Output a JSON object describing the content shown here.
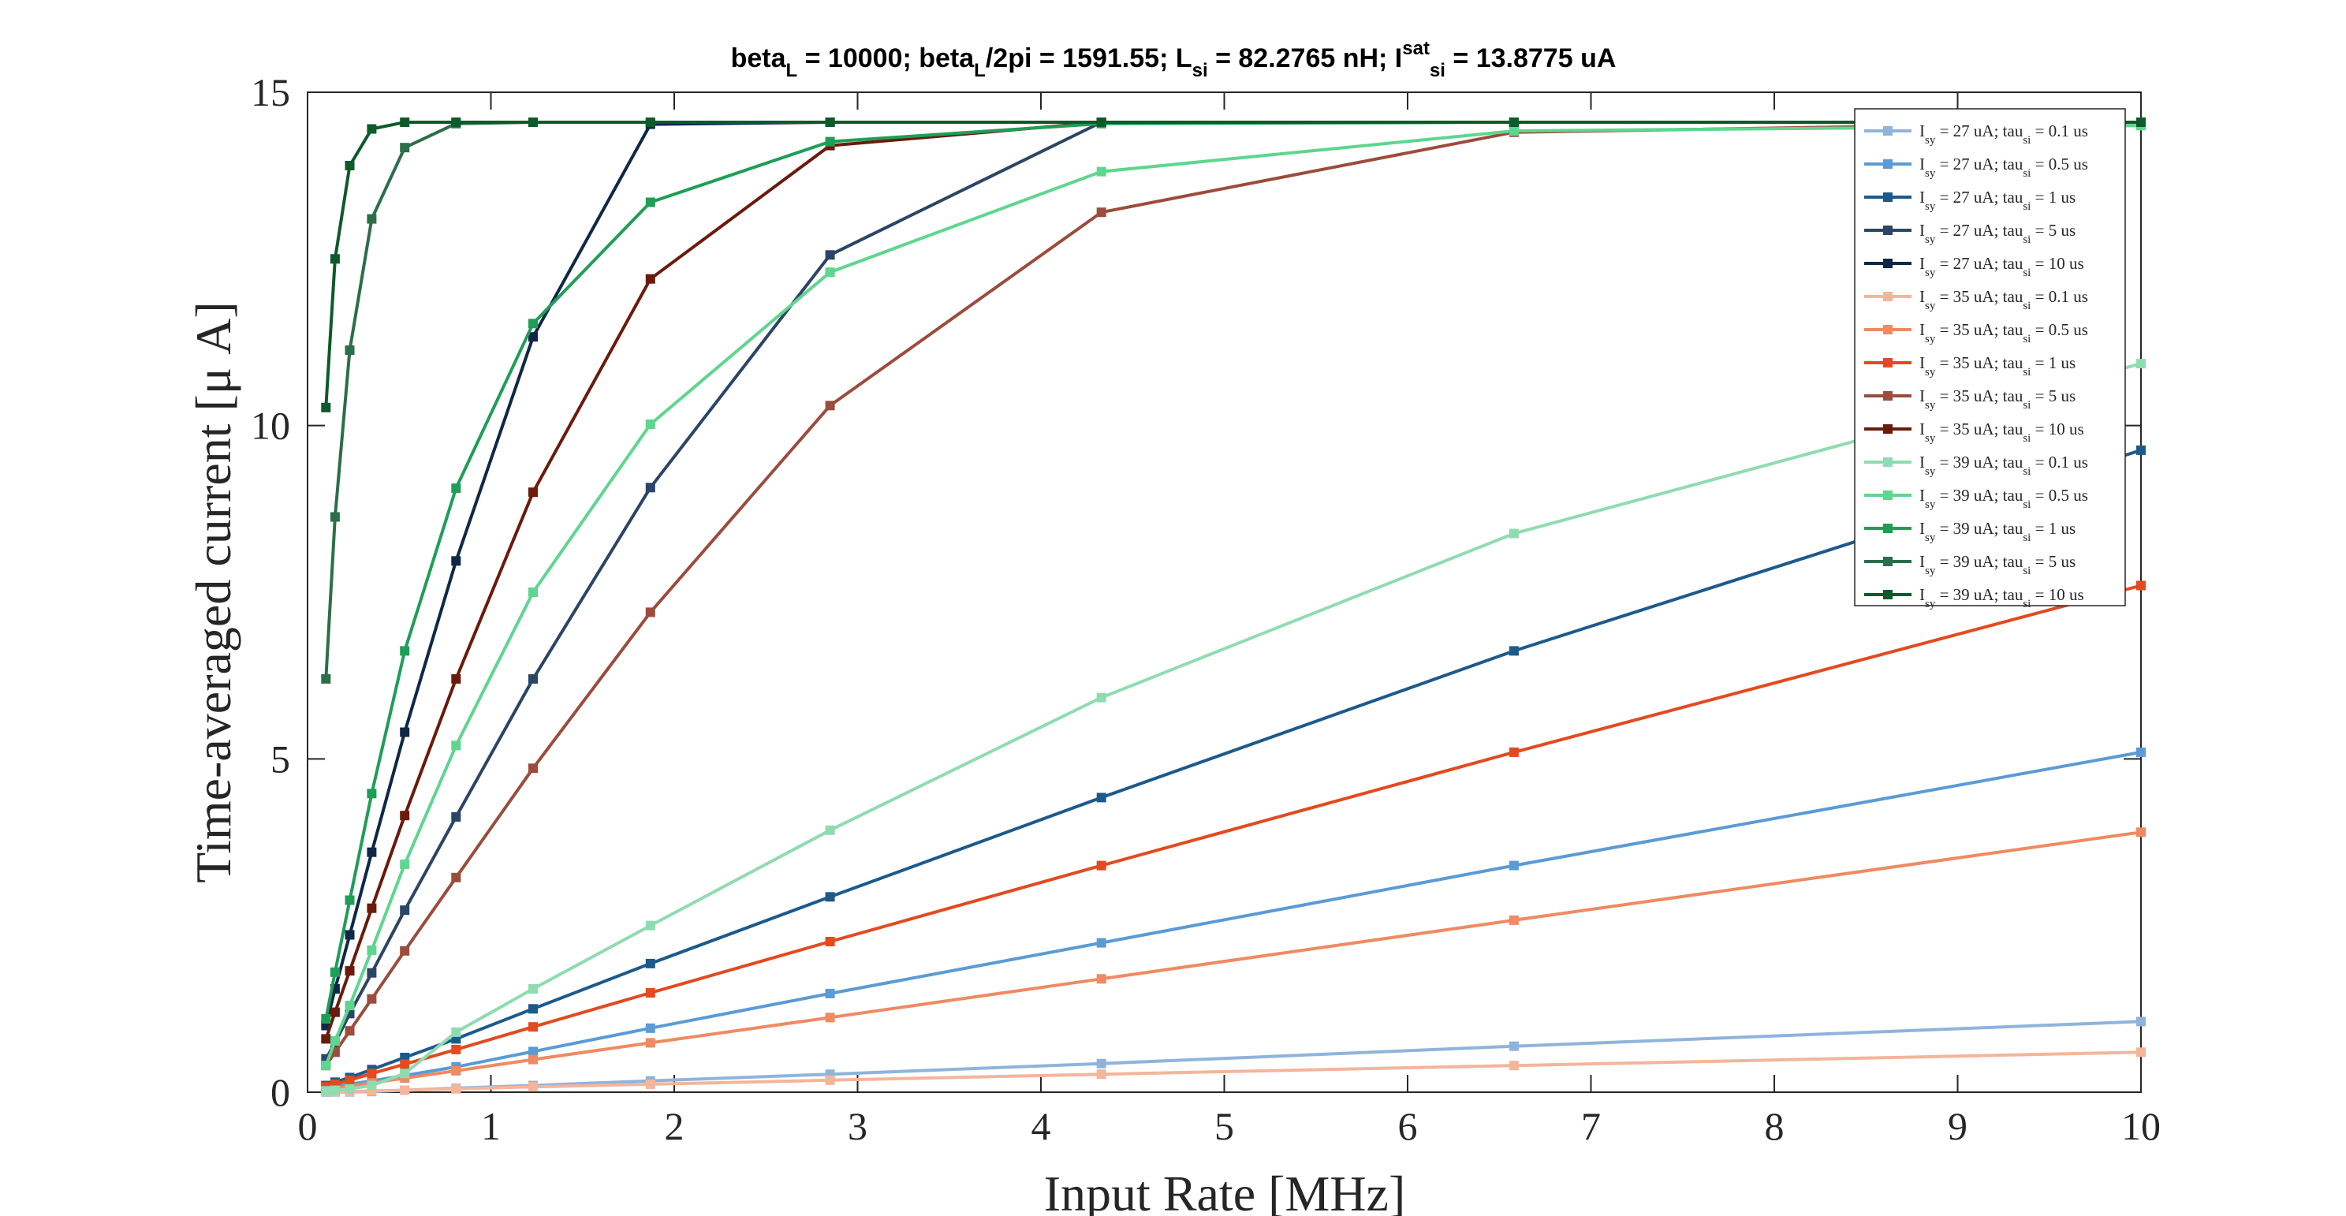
{
  "chart_data": {
    "type": "line",
    "title_parts": {
      "p1": "beta",
      "p1_sub": "L",
      "p2": " = 10000; beta",
      "p2_sub": "L",
      "p3": "/2pi = 1591.55; L",
      "p3_sub": "si",
      "p4": " = 82.2765 nH; I",
      "p4_sup": "sat",
      "p4_sub": "si",
      "p5": " = 13.8775 uA"
    },
    "xlabel": "Input Rate [MHz]",
    "ylabel": "Time-averaged current [μ A]",
    "xlim": [
      0,
      10
    ],
    "ylim": [
      0,
      15
    ],
    "xticks": [
      "0",
      "1",
      "2",
      "3",
      "4",
      "5",
      "6",
      "7",
      "8",
      "9",
      "10"
    ],
    "yticks": [
      "0",
      "5",
      "10",
      "15"
    ],
    "x": [
      0.1,
      0.15,
      0.23,
      0.35,
      0.53,
      0.81,
      1.23,
      1.87,
      2.85,
      4.33,
      6.58,
      10.0
    ],
    "series": [
      {
        "I_sy": "27",
        "tau_si": "0.1",
        "color": "#8fb4dc",
        "values": [
          0.002,
          0.003,
          0.004,
          0.01,
          0.03,
          0.06,
          0.1,
          0.17,
          0.27,
          0.43,
          0.69,
          1.06
        ]
      },
      {
        "I_sy": "27",
        "tau_si": "0.5",
        "color": "#5b9bd5",
        "values": [
          0.05,
          0.08,
          0.12,
          0.17,
          0.25,
          0.38,
          0.61,
          0.96,
          1.48,
          2.24,
          3.4,
          5.1
        ]
      },
      {
        "I_sy": "27",
        "tau_si": "1",
        "color": "#1c5a8c",
        "values": [
          0.1,
          0.15,
          0.22,
          0.34,
          0.52,
          0.8,
          1.25,
          1.93,
          2.93,
          4.42,
          6.62,
          9.63
        ]
      },
      {
        "I_sy": "27",
        "tau_si": "5",
        "color": "#2b4566",
        "values": [
          0.5,
          0.74,
          1.18,
          1.79,
          2.73,
          4.13,
          6.2,
          9.07,
          12.56,
          14.55,
          14.55,
          14.55
        ]
      },
      {
        "I_sy": "27",
        "tau_si": "10",
        "color": "#0f2847",
        "values": [
          1.0,
          1.55,
          2.36,
          3.6,
          5.4,
          7.97,
          11.33,
          14.52,
          14.55,
          14.55,
          14.55,
          14.55
        ]
      },
      {
        "I_sy": "35",
        "tau_si": "0.1",
        "color": "#f4b59a",
        "values": [
          0.01,
          0.01,
          0.01,
          0.02,
          0.03,
          0.05,
          0.08,
          0.12,
          0.18,
          0.27,
          0.4,
          0.6
        ]
      },
      {
        "I_sy": "35",
        "tau_si": "0.5",
        "color": "#ef8a62",
        "values": [
          0.04,
          0.06,
          0.09,
          0.14,
          0.21,
          0.32,
          0.49,
          0.74,
          1.12,
          1.7,
          2.58,
          3.9
        ]
      },
      {
        "I_sy": "35",
        "tau_si": "1",
        "color": "#e34a1f",
        "values": [
          0.08,
          0.12,
          0.18,
          0.28,
          0.42,
          0.64,
          0.98,
          1.49,
          2.26,
          3.4,
          5.1,
          7.6
        ]
      },
      {
        "I_sy": "35",
        "tau_si": "5",
        "color": "#9c4c3c",
        "values": [
          0.4,
          0.6,
          0.92,
          1.4,
          2.12,
          3.22,
          4.86,
          7.2,
          10.3,
          13.2,
          14.4,
          14.55
        ]
      },
      {
        "I_sy": "35",
        "tau_si": "10",
        "color": "#6b1a0c",
        "values": [
          0.8,
          1.2,
          1.82,
          2.76,
          4.15,
          6.2,
          9.0,
          12.2,
          14.2,
          14.55,
          14.55,
          14.55
        ]
      },
      {
        "I_sy": "39",
        "tau_si": "0.1",
        "color": "#8fdcb0",
        "values": [
          0.02,
          0.03,
          0.05,
          0.1,
          0.28,
          0.9,
          1.55,
          2.5,
          3.93,
          5.92,
          8.38,
          10.93
        ]
      },
      {
        "I_sy": "39",
        "tau_si": "0.5",
        "color": "#5ed68f",
        "values": [
          0.4,
          0.77,
          1.3,
          2.13,
          3.42,
          5.2,
          7.5,
          10.02,
          12.3,
          13.81,
          14.42,
          14.5
        ]
      },
      {
        "I_sy": "39",
        "tau_si": "1",
        "color": "#1f9e57",
        "values": [
          1.1,
          1.8,
          2.88,
          4.48,
          6.62,
          9.06,
          11.53,
          13.35,
          14.26,
          14.53,
          14.55,
          14.55
        ]
      },
      {
        "I_sy": "39",
        "tau_si": "5",
        "color": "#2b6e4a",
        "values": [
          6.2,
          8.63,
          11.13,
          13.1,
          14.17,
          14.53,
          14.55,
          14.55,
          14.55,
          14.55,
          14.55,
          14.55
        ]
      },
      {
        "I_sy": "39",
        "tau_si": "10",
        "color": "#0d5a2a",
        "values": [
          10.27,
          12.5,
          13.9,
          14.45,
          14.55,
          14.55,
          14.55,
          14.55,
          14.55,
          14.55,
          14.55,
          14.55
        ]
      }
    ],
    "legend_parts": {
      "p1": "I",
      "p1_sub": "sy",
      "p2": " = ",
      "p3": " uA; tau",
      "p3_sub": "si",
      "p4": " = ",
      "p5": " us"
    },
    "legend_position": "top-right",
    "grid": false
  }
}
